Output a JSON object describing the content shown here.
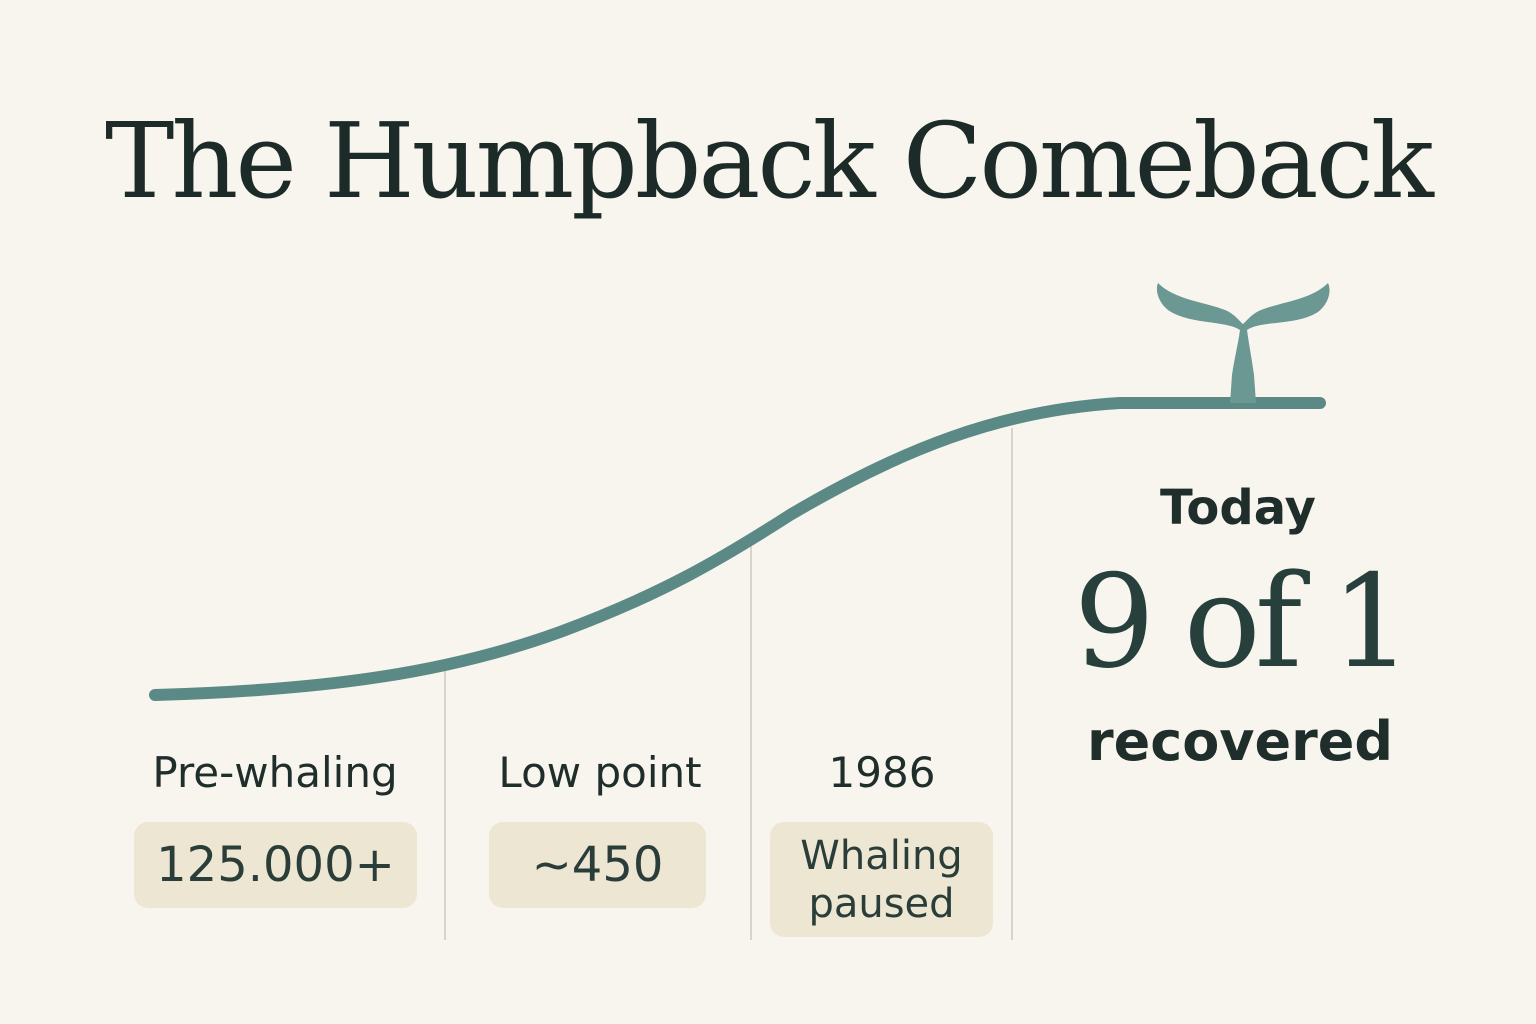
{
  "title": "The Humpback Comeback",
  "stages": [
    {
      "label": "Pre-whaling",
      "value": "125.000+"
    },
    {
      "label": "Low point",
      "value": "~450"
    },
    {
      "label": "1986",
      "value": "Whaling paused"
    }
  ],
  "today": {
    "label": "Today",
    "value": "9 of 1",
    "caption": "recovered"
  }
}
